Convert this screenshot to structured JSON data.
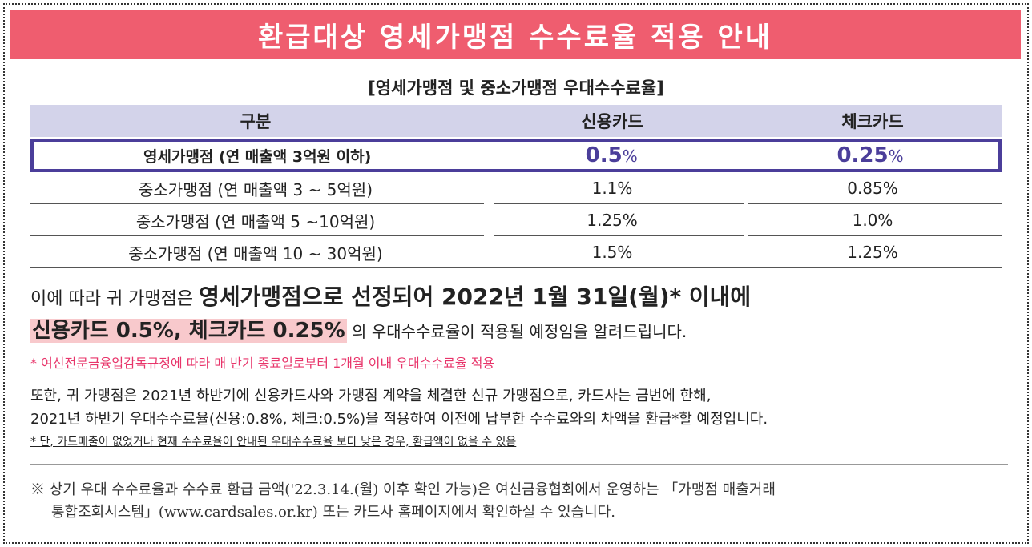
{
  "banner": {
    "title": "환급대상 영세가맹점 수수료율 적용 안내"
  },
  "table": {
    "subtitle": "[영세가맹점 및 중소가맹점 우대수수료율]",
    "headers": [
      "구분",
      "신용카드",
      "체크카드"
    ],
    "highlight_row": {
      "label": "영세가맹점 (연 매출액 3억원 이하)",
      "credit_value": "0.5",
      "check_value": "0.25",
      "unit": "%"
    },
    "rows": [
      {
        "label": "중소가맹점 (연 매출액 3 ~ 5억원)",
        "credit": "1.1%",
        "check": "0.85%"
      },
      {
        "label": "중소가맹점 (연 매출액 5 ~10억원)",
        "credit": "1.25%",
        "check": "1.0%"
      },
      {
        "label": "중소가맹점 (연 매출액 10 ~ 30억원)",
        "credit": "1.5%",
        "check": "1.25%"
      }
    ]
  },
  "body": {
    "line1_prefix": "이에 따라 귀 가맹점은 ",
    "line1_bold": "영세가맹점으로 선정되어 2022년 1월 31일(월)* 이내에",
    "line2_highlight": "신용카드 0.5%, 체크카드 0.25%",
    "line2_suffix": " 의 우대수수료율이 적용될 예정임을 알려드립니다.",
    "red_note": "* 여신전문금융업감독규정에 따라 매 반기 종료일로부터 1개월 이내 우대수수료율 적용",
    "line3": "또한, 귀 가맹점은 2021년 하반기에 신용카드사와 가맹점 계약을 체결한 신규 가맹점으로, 카드사는 금번에 한해,",
    "line4": "2021년 하반기 우대수수료율(신용:0.8%, 체크:0.5%)을 적용하여 이전에 납부한 수수료와의 차액을 환급*할 예정입니다.",
    "underline_note": "* 단, 카드매출이 없었거나 현재 수수료율이 안내된 우대수수료율 보다 낮은 경우, 환급액이 없을 수 있음"
  },
  "footer": {
    "line1": "※ 상기 우대 수수료율과 수수료 환급 금액('22.3.14.(월) 이후 확인 가능)은 여신금융협회에서 운영하는 「가맹점 매출거래",
    "line2": "통합조회시스템」(www.cardsales.or.kr) 또는 카드사 홈페이지에서 확인하실 수 있습니다."
  },
  "colors": {
    "banner": "#ef5d6f",
    "accent": "#4b3e9a",
    "header_bg": "#d3d3ea",
    "highlight_bg": "#f8c9cc",
    "red_note": "#e8346a"
  }
}
